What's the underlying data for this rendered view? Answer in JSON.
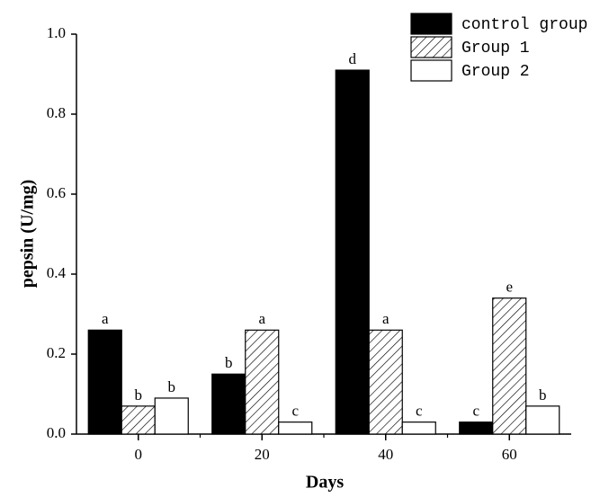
{
  "chart_data": {
    "type": "bar",
    "x_label": "Days",
    "y_label": "pepsin (U/mg)",
    "categories": [
      "0",
      "20",
      "40",
      "60"
    ],
    "series": [
      {
        "name": "control group",
        "color": "#000000",
        "hatch": false,
        "values": [
          0.26,
          0.15,
          0.91,
          0.03
        ],
        "annotations": [
          "a",
          "b",
          "d",
          "c"
        ]
      },
      {
        "name": "Group 1",
        "color": "#000000",
        "hatch": true,
        "values": [
          0.07,
          0.26,
          0.26,
          0.34
        ],
        "annotations": [
          "b",
          "a",
          "a",
          "e"
        ]
      },
      {
        "name": "Group 2",
        "color": "#ffffff",
        "hatch": false,
        "values": [
          0.09,
          0.03,
          0.03,
          0.07
        ],
        "annotations": [
          "b",
          "c",
          "c",
          "b"
        ]
      }
    ],
    "ylim": [
      0,
      1.0
    ],
    "yticks": [
      {
        "value": 0,
        "label": "0.0"
      },
      0.2,
      0.4,
      0.6,
      0.8,
      {
        "value": 1.0,
        "label": "1.0"
      }
    ],
    "legend": "top-right"
  }
}
